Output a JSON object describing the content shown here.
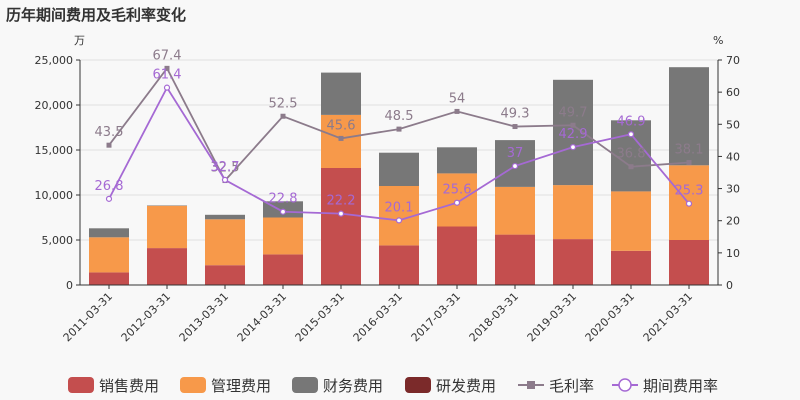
{
  "title": "历年期间费用及毛利率变化",
  "units": {
    "left": "万",
    "right": "%"
  },
  "colors": {
    "sales": "#c44e4e",
    "mgmt": "#f7994a",
    "fin": "#777777",
    "rd": "#7b2a2a",
    "gm": "#8c7b8b",
    "er": "#a569d4"
  },
  "chart_data": {
    "type": "bar",
    "stacked": true,
    "categories": [
      "2011-03-31",
      "2012-03-31",
      "2013-03-31",
      "2014-03-31",
      "2015-03-31",
      "2016-03-31",
      "2017-03-31",
      "2018-03-31",
      "2019-03-31",
      "2020-03-31",
      "2021-03-31"
    ],
    "series": [
      {
        "key": "sales",
        "name": "销售费用",
        "values": [
          1400,
          4100,
          2200,
          3400,
          13000,
          4400,
          6500,
          5600,
          5100,
          3800,
          5000
        ]
      },
      {
        "key": "mgmt",
        "name": "管理费用",
        "values": [
          3900,
          4700,
          5100,
          4100,
          5900,
          6600,
          5900,
          5300,
          6000,
          6600,
          8300
        ]
      },
      {
        "key": "fin",
        "name": "财务费用",
        "values": [
          1000,
          50,
          500,
          1800,
          4700,
          3700,
          2900,
          5200,
          11700,
          7900,
          10900
        ]
      },
      {
        "key": "rd",
        "name": "研发费用",
        "values": [
          0,
          0,
          0,
          0,
          0,
          0,
          0,
          0,
          0,
          0,
          0
        ]
      }
    ],
    "lines": [
      {
        "key": "gm",
        "name": "毛利率",
        "values": [
          43.5,
          67.4,
          32.5,
          52.5,
          45.6,
          48.5,
          54,
          49.3,
          49.7,
          36.8,
          38.1
        ],
        "labels": [
          "43.5",
          "67.4",
          "32.5",
          "52.5",
          "45.6",
          "48.5",
          "54",
          "49.3",
          "49.7",
          "36.8",
          "38.1"
        ]
      },
      {
        "key": "er",
        "name": "期间费用率",
        "values": [
          26.8,
          61.4,
          32.7,
          22.8,
          22.2,
          20.1,
          25.6,
          37,
          42.9,
          46.9,
          25.3
        ],
        "labels": [
          "26.8",
          "61.4",
          "32.7",
          "22.8",
          "22.2",
          "20.1",
          "25.6",
          "37",
          "42.9",
          "46.9",
          "25.3"
        ]
      }
    ],
    "y_left": {
      "min": 0,
      "max": 25000,
      "ticks": [
        "0",
        "5,000",
        "10,000",
        "15,000",
        "20,000",
        "25,000"
      ]
    },
    "y_right": {
      "min": 0,
      "max": 70,
      "ticks": [
        "0",
        "10",
        "20",
        "30",
        "40",
        "50",
        "60",
        "70"
      ]
    },
    "legend": [
      "销售费用",
      "管理费用",
      "财务费用",
      "研发费用",
      "毛利率",
      "期间费用率"
    ],
    "legend_position": "bottom"
  }
}
